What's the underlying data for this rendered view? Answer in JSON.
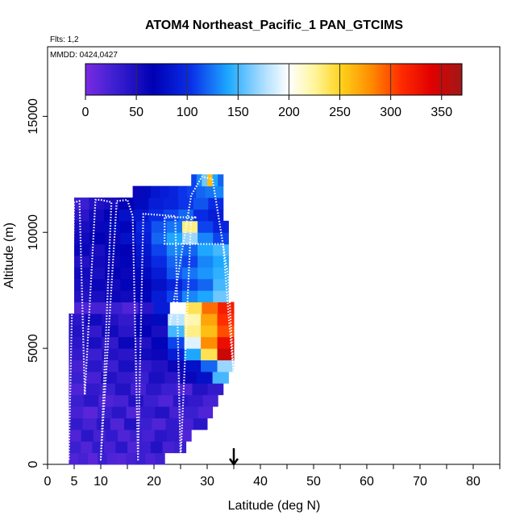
{
  "chart_data": {
    "type": "heatmap",
    "title": "ATOM4 Northeast_Pacific_1 PAN_GTCIMS",
    "flights_label": "Flts: 1,2",
    "dates_label": "MMDD: 0424,0427",
    "xlabel": "Latitude (deg N)",
    "ylabel": "Altitude (m)",
    "xlim": [
      0,
      85
    ],
    "ylim": [
      0,
      18000
    ],
    "x_ticks": [
      0,
      5,
      10,
      20,
      30,
      40,
      50,
      60,
      70,
      80
    ],
    "y_ticks": [
      0,
      5000,
      10000,
      15000
    ],
    "colorbar": {
      "range": [
        0,
        370
      ],
      "ticks": [
        0,
        50,
        100,
        150,
        200,
        250,
        300,
        350
      ]
    },
    "arrow_latitude": 35,
    "heatmap_rows": [
      {
        "alt_min": 0,
        "alt_max": 500,
        "lat_min": 4,
        "lat_max": 22,
        "values": [
          20,
          25,
          15,
          30,
          20,
          18,
          25,
          30,
          22,
          28
        ]
      },
      {
        "alt_min": 500,
        "alt_max": 1000,
        "lat_min": 4,
        "lat_max": 26,
        "values": [
          30,
          20,
          35,
          25,
          40,
          20,
          30,
          45,
          25,
          30
        ]
      },
      {
        "alt_min": 1000,
        "alt_max": 1500,
        "lat_min": 4,
        "lat_max": 27,
        "values": [
          20,
          40,
          25,
          35,
          20,
          30,
          25,
          40,
          35,
          20
        ]
      },
      {
        "alt_min": 1500,
        "alt_max": 2000,
        "lat_min": 4,
        "lat_max": 30,
        "values": [
          35,
          25,
          40,
          20,
          45,
          30,
          20,
          35,
          25,
          40
        ]
      },
      {
        "alt_min": 2000,
        "alt_max": 2500,
        "lat_min": 4,
        "lat_max": 31,
        "values": [
          25,
          15,
          30,
          40,
          20,
          35,
          45,
          25,
          30,
          20
        ]
      },
      {
        "alt_min": 2500,
        "alt_max": 3000,
        "lat_min": 4,
        "lat_max": 32,
        "values": [
          30,
          40,
          20,
          25,
          45,
          30,
          20,
          40,
          35,
          25
        ]
      },
      {
        "alt_min": 3000,
        "alt_max": 3500,
        "lat_min": 4,
        "lat_max": 33,
        "values": [
          20,
          35,
          30,
          45,
          25,
          40,
          30,
          20,
          45,
          35
        ]
      },
      {
        "alt_min": 3500,
        "alt_max": 4000,
        "lat_min": 4,
        "lat_max": 34,
        "values": [
          30,
          25,
          45,
          35,
          30,
          50,
          40,
          60,
          80,
          150
        ]
      },
      {
        "alt_min": 4000,
        "alt_max": 4500,
        "lat_min": 4,
        "lat_max": 35,
        "values": [
          25,
          40,
          30,
          50,
          35,
          45,
          60,
          80,
          120,
          170
        ]
      },
      {
        "alt_min": 4500,
        "alt_max": 5000,
        "lat_min": 4,
        "lat_max": 35,
        "values": [
          35,
          30,
          45,
          40,
          55,
          60,
          90,
          140,
          240,
          350
        ]
      },
      {
        "alt_min": 5000,
        "alt_max": 5500,
        "lat_min": 4,
        "lat_max": 35,
        "values": [
          40,
          50,
          35,
          60,
          45,
          70,
          110,
          190,
          280,
          330
        ]
      },
      {
        "alt_min": 5500,
        "alt_max": 6000,
        "lat_min": 4,
        "lat_max": 35,
        "values": [
          45,
          35,
          55,
          40,
          65,
          50,
          150,
          230,
          260,
          300
        ]
      },
      {
        "alt_min": 6000,
        "alt_max": 6500,
        "lat_min": 4,
        "lat_max": 35,
        "values": [
          40,
          55,
          45,
          35,
          60,
          75,
          180,
          220,
          270,
          310
        ]
      },
      {
        "alt_min": 6500,
        "alt_max": 7000,
        "lat_min": 5,
        "lat_max": 35,
        "values": [
          20,
          25,
          30,
          20,
          40,
          90,
          200,
          240,
          290,
          320
        ]
      },
      {
        "alt_min": 7000,
        "alt_max": 7500,
        "lat_min": 5,
        "lat_max": 34,
        "values": [
          45,
          50,
          60,
          55,
          70,
          90,
          110,
          130,
          140,
          160
        ]
      },
      {
        "alt_min": 7500,
        "alt_max": 8000,
        "lat_min": 5,
        "lat_max": 34,
        "values": [
          50,
          60,
          55,
          70,
          65,
          80,
          95,
          110,
          120,
          150
        ]
      },
      {
        "alt_min": 8000,
        "alt_max": 8500,
        "lat_min": 5,
        "lat_max": 34,
        "values": [
          55,
          50,
          65,
          60,
          75,
          90,
          115,
          125,
          135,
          145
        ]
      },
      {
        "alt_min": 8500,
        "alt_max": 9000,
        "lat_min": 5,
        "lat_max": 34,
        "values": [
          45,
          55,
          60,
          70,
          80,
          100,
          120,
          110,
          130,
          140
        ]
      },
      {
        "alt_min": 9000,
        "alt_max": 9500,
        "lat_min": 5,
        "lat_max": 34,
        "values": [
          60,
          50,
          70,
          65,
          85,
          110,
          130,
          120,
          140,
          150
        ]
      },
      {
        "alt_min": 9500,
        "alt_max": 10000,
        "lat_min": 5,
        "lat_max": 34,
        "values": [
          55,
          65,
          60,
          80,
          90,
          120,
          140,
          170,
          130,
          110
        ]
      },
      {
        "alt_min": 10000,
        "alt_max": 10500,
        "lat_min": 5,
        "lat_max": 34,
        "values": [
          50,
          60,
          75,
          70,
          95,
          115,
          125,
          230,
          110,
          95
        ]
      },
      {
        "alt_min": 10500,
        "alt_max": 11000,
        "lat_min": 5,
        "lat_max": 33,
        "values": [
          40,
          55,
          65,
          80,
          85,
          100,
          110,
          120,
          100,
          90
        ]
      },
      {
        "alt_min": 11000,
        "alt_max": 11500,
        "lat_min": 5,
        "lat_max": 33,
        "values": [
          30,
          45,
          50,
          65,
          75,
          90,
          95,
          105,
          115,
          100
        ]
      },
      {
        "alt_min": 11500,
        "alt_max": 12000,
        "lat_min": 16,
        "lat_max": 33,
        "values": [
          60,
          75,
          85,
          90,
          95,
          105,
          110,
          120,
          125,
          130
        ]
      },
      {
        "alt_min": 12000,
        "alt_max": 12500,
        "lat_min": 27,
        "lat_max": 33,
        "values": [
          110,
          130,
          160,
          260,
          140,
          120
        ]
      }
    ],
    "flight_track": [
      [
        4,
        200
      ],
      [
        5,
        11300
      ],
      [
        6,
        11350
      ],
      [
        7,
        3000
      ],
      [
        9,
        11400
      ],
      [
        10,
        11400
      ],
      [
        12,
        11300
      ],
      [
        10,
        200
      ],
      [
        13,
        11350
      ],
      [
        15,
        11400
      ],
      [
        16,
        10700
      ],
      [
        17,
        200
      ],
      [
        18,
        10800
      ],
      [
        24,
        10700
      ],
      [
        25,
        200
      ],
      [
        27,
        10600
      ],
      [
        28,
        10650
      ],
      [
        22,
        10650
      ],
      [
        22,
        9500
      ],
      [
        33,
        9500
      ],
      [
        34,
        6500
      ],
      [
        35,
        3800
      ],
      [
        34,
        8000
      ],
      [
        31,
        12300
      ],
      [
        29,
        12400
      ],
      [
        27,
        11600
      ],
      [
        23,
        6000
      ]
    ]
  }
}
